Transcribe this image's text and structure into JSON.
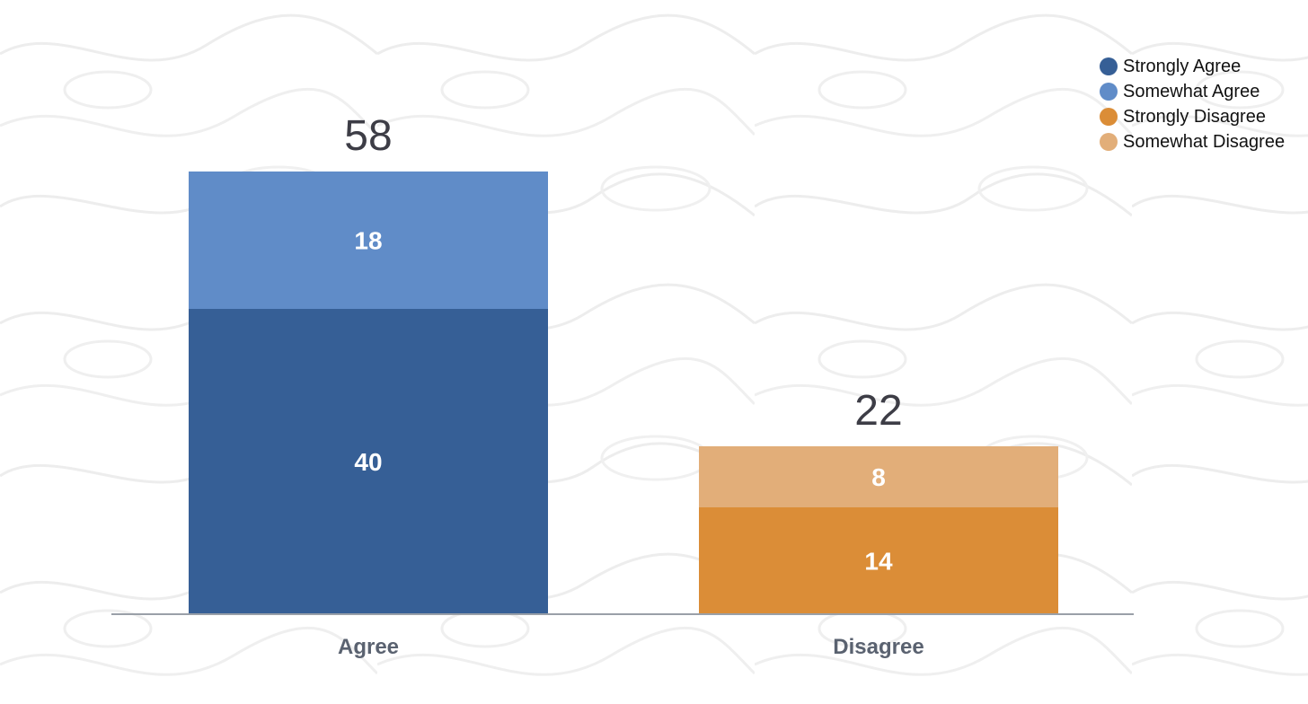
{
  "chart_data": {
    "type": "bar",
    "stacked": true,
    "categories": [
      "Agree",
      "Disagree"
    ],
    "totals": [
      58,
      22
    ],
    "series": [
      {
        "name": "Strongly Agree",
        "values": [
          40,
          0
        ],
        "color": "#365f96"
      },
      {
        "name": "Somewhat Agree",
        "values": [
          18,
          0
        ],
        "color": "#608cc8"
      },
      {
        "name": "Strongly Disagree",
        "values": [
          0,
          14
        ],
        "color": "#db8d37"
      },
      {
        "name": "Somewhat Disagree",
        "values": [
          0,
          8
        ],
        "color": "#e2ae79"
      }
    ],
    "ylim": [
      0,
      58
    ],
    "grid": false,
    "legend_position": "top-right"
  }
}
